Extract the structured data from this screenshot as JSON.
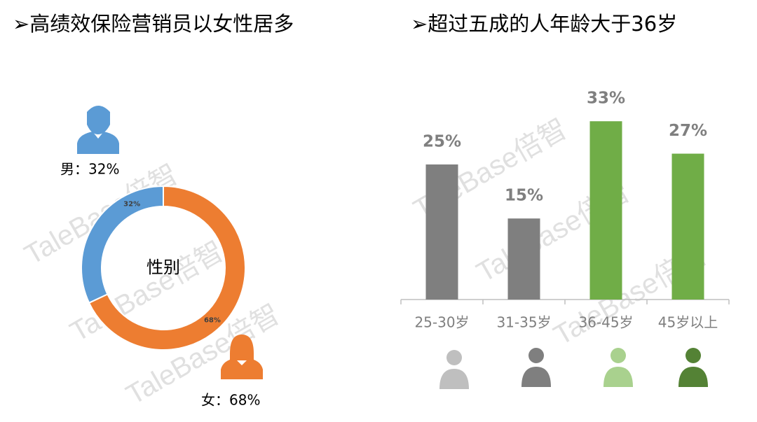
{
  "watermark": "TaleBase倍智",
  "chart_data": [
    {
      "type": "donut",
      "title": "➢高绩效保险营销员以女性居多",
      "center_label": "性别",
      "categories": [
        "男",
        "女"
      ],
      "values": [
        32,
        68
      ],
      "value_labels": [
        "32%",
        "68%"
      ],
      "annotations": [
        "男：32%",
        "女：68%"
      ],
      "colors": [
        "#5b9bd5",
        "#ed7d31"
      ]
    },
    {
      "type": "bar",
      "title": "➢超过五成的人年龄大于36岁",
      "categories": [
        "25-30岁",
        "31-35岁",
        "36-45岁",
        "45岁以上"
      ],
      "values": [
        25,
        15,
        33,
        27
      ],
      "value_labels": [
        "25%",
        "15%",
        "33%",
        "27%"
      ],
      "colors": [
        "#7f7f7f",
        "#7f7f7f",
        "#70ad47",
        "#70ad47"
      ]
    }
  ]
}
